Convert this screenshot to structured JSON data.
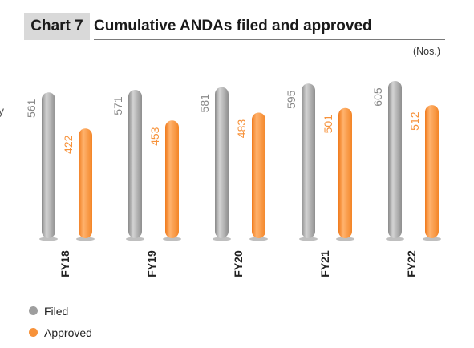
{
  "header": {
    "chart_number": "Chart 7",
    "title": "Cumulative ANDAs filed and approved",
    "unit": "(Nos.)"
  },
  "edge_mark": "y",
  "colors": {
    "filed": "#9e9e9e",
    "approved": "#f7923a"
  },
  "legend": {
    "filed_label": "Filed",
    "approved_label": "Approved"
  },
  "chart_data": {
    "type": "bar",
    "title": "Cumulative ANDAs filed and approved",
    "ylabel": "(Nos.)",
    "xlabel": "",
    "categories": [
      "FY18",
      "FY19",
      "FY20",
      "FY21",
      "FY22"
    ],
    "series": [
      {
        "name": "Filed",
        "values": [
          561,
          571,
          581,
          595,
          605
        ]
      },
      {
        "name": "Approved",
        "values": [
          422,
          453,
          483,
          501,
          512
        ]
      }
    ],
    "ylim": [
      0,
      610
    ],
    "grid": false,
    "legend_position": "bottom-left"
  }
}
